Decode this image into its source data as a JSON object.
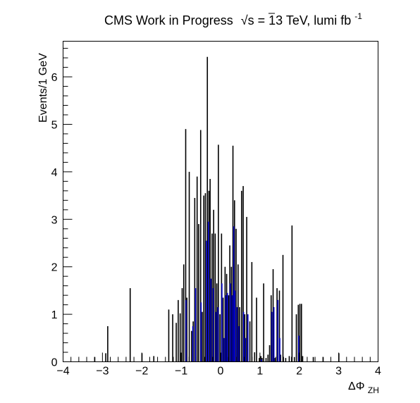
{
  "chart_data": {
    "type": "histogram",
    "title": {
      "prefix": "CMS Work in Progress",
      "sqrt": "√s",
      "energy": " = 13 TeV, lumi fb",
      "superscript": "-1"
    },
    "xlabel": {
      "main": "ΔΦ",
      "subscript": "ZH"
    },
    "ylabel": "Events/1 GeV",
    "xlim": [
      -4,
      4
    ],
    "ylim": [
      0,
      6.75
    ],
    "xticks": [
      "−4",
      "−3",
      "−2",
      "−1",
      "0",
      "1",
      "2",
      "3",
      "4"
    ],
    "yticks": [
      "0",
      "1",
      "2",
      "3",
      "4",
      "5",
      "6"
    ],
    "bin_width": 0.02,
    "colors": {
      "frame": "#000000",
      "black_bars": "#000000",
      "blue_bars": "#0000cc"
    },
    "series": [
      {
        "color_key": "black_bars",
        "points": [
          [
            -3.2,
            0.1
          ],
          [
            -2.92,
            0.18
          ],
          [
            -2.87,
            0.75
          ],
          [
            -2.3,
            1.55
          ],
          [
            -2.0,
            0.18
          ],
          [
            -1.7,
            0.12
          ],
          [
            -1.32,
            1.1
          ],
          [
            -1.22,
            1.0
          ],
          [
            -1.13,
            0.82
          ],
          [
            -1.08,
            1.3
          ],
          [
            -1.03,
            1.02
          ],
          [
            -0.98,
            1.55
          ],
          [
            -0.94,
            2.05
          ],
          [
            -0.89,
            4.9
          ],
          [
            -0.86,
            1.35
          ],
          [
            -0.8,
            4.0
          ],
          [
            -0.74,
            0.65
          ],
          [
            -0.7,
            0.85
          ],
          [
            -0.66,
            3.45
          ],
          [
            -0.6,
            3.9
          ],
          [
            -0.56,
            2.9
          ],
          [
            -0.51,
            4.88
          ],
          [
            -0.47,
            1.05
          ],
          [
            -0.43,
            3.5
          ],
          [
            -0.39,
            3.55
          ],
          [
            -0.34,
            6.42
          ],
          [
            -0.3,
            3.6
          ],
          [
            -0.27,
            3.85
          ],
          [
            -0.22,
            2.7
          ],
          [
            -0.18,
            3.2
          ],
          [
            -0.14,
            2.7
          ],
          [
            -0.1,
            1.65
          ],
          [
            -0.06,
            4.57
          ],
          [
            -0.02,
            1.0
          ],
          [
            0.02,
            2.7
          ],
          [
            0.06,
            1.35
          ],
          [
            0.11,
            2.0
          ],
          [
            0.15,
            1.85
          ],
          [
            0.2,
            1.4
          ],
          [
            0.23,
            2.45
          ],
          [
            0.27,
            2.0
          ],
          [
            0.31,
            4.55
          ],
          [
            0.35,
            3.4
          ],
          [
            0.39,
            2.8
          ],
          [
            0.44,
            2.05
          ],
          [
            0.48,
            1.15
          ],
          [
            0.53,
            3.6
          ],
          [
            0.57,
            3.7
          ],
          [
            0.61,
            1.0
          ],
          [
            0.66,
            3.05
          ],
          [
            0.74,
            0.85
          ],
          [
            0.79,
            2.1
          ],
          [
            0.86,
            0.2
          ],
          [
            0.91,
            1.35
          ],
          [
            0.98,
            0.08
          ],
          [
            1.02,
            0.12
          ],
          [
            1.05,
            0.08
          ],
          [
            1.09,
            1.65
          ],
          [
            1.15,
            0.08
          ],
          [
            1.2,
            0.15
          ],
          [
            1.24,
            0.35
          ],
          [
            1.28,
            1.4
          ],
          [
            1.33,
            1.95
          ],
          [
            1.38,
            0.08
          ],
          [
            1.43,
            1.55
          ],
          [
            1.49,
            1.5
          ],
          [
            1.52,
            0.15
          ],
          [
            1.58,
            2.25
          ],
          [
            1.65,
            0.08
          ],
          [
            1.74,
            0.12
          ],
          [
            1.81,
            2.87
          ],
          [
            1.87,
            0.1
          ],
          [
            1.92,
            1.0
          ],
          [
            1.97,
            1.2
          ],
          [
            2.01,
            1.22
          ],
          [
            2.05,
            1.22
          ],
          [
            2.08,
            0.12
          ],
          [
            2.35,
            0.1
          ],
          [
            2.6,
            0.1
          ],
          [
            3.0,
            0.18
          ]
        ]
      },
      {
        "color_key": "blue_bars",
        "points": [
          [
            -0.88,
            1.3
          ],
          [
            -0.71,
            0.75
          ],
          [
            -0.64,
            1.55
          ],
          [
            -0.5,
            1.25
          ],
          [
            -0.36,
            2.55
          ],
          [
            -0.31,
            2.95
          ],
          [
            -0.25,
            1.75
          ],
          [
            -0.19,
            1.55
          ],
          [
            -0.12,
            1.05
          ],
          [
            -0.07,
            1.15
          ],
          [
            0.03,
            1.65
          ],
          [
            0.08,
            0.5
          ],
          [
            0.13,
            1.4
          ],
          [
            0.17,
            1.45
          ],
          [
            0.24,
            1.65
          ],
          [
            0.29,
            1.4
          ],
          [
            0.33,
            2.85
          ],
          [
            0.36,
            1.5
          ],
          [
            0.41,
            1.15
          ],
          [
            0.46,
            0.75
          ],
          [
            0.58,
            1.05
          ],
          [
            0.63,
            0.5
          ],
          [
            0.69,
            1.0
          ],
          [
            1.03,
            0.05
          ],
          [
            1.3,
            1.05
          ],
          [
            1.35,
            1.15
          ],
          [
            1.45,
            1.3
          ],
          [
            1.5,
            0.5
          ],
          [
            1.98,
            0.55
          ]
        ]
      }
    ]
  }
}
